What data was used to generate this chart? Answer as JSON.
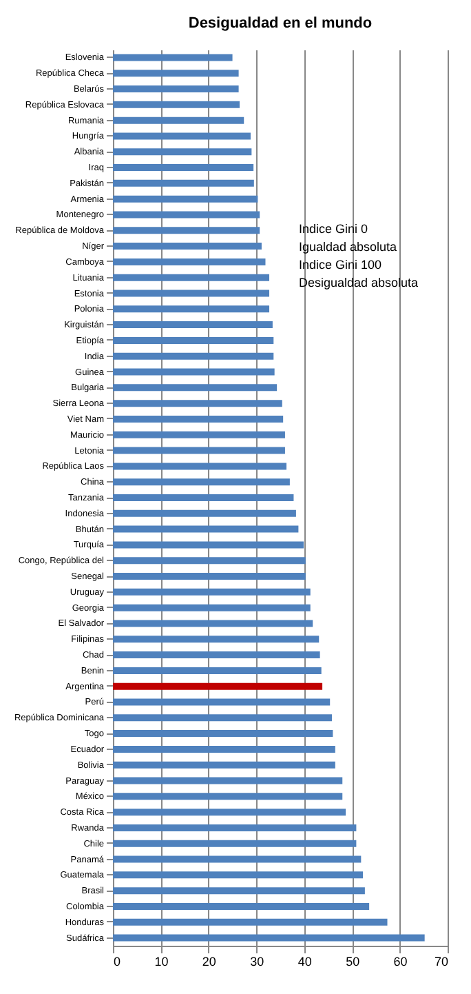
{
  "chart_data": {
    "type": "bar",
    "orientation": "horizontal",
    "title": "Desigualdad en el mundo",
    "categories": [
      "Eslovenia",
      "República Checa",
      "Belarús",
      "República Eslovaca",
      "Rumania",
      "Hungría",
      "Albania",
      "Iraq",
      "Pakistán",
      "Armenia",
      "Montenegro",
      "República de Moldova",
      "Níger",
      "Camboya",
      "Lituania",
      "Estonia",
      "Polonia",
      "Kirguistán",
      "Etiopía",
      "India",
      "Guinea",
      "Bulgaria",
      "Sierra Leona",
      "Viet Nam",
      "Mauricio",
      "Letonia",
      "República Laos",
      "China",
      "Tanzania",
      "Indonesia",
      "Bhután",
      "Turquía",
      "Congo, República del",
      "Senegal",
      "Uruguay",
      "Georgia",
      "El Salvador",
      "Filipinas",
      "Chad",
      "Benin",
      "Argentina",
      "Perú",
      "República Dominicana",
      "Togo",
      "Ecuador",
      "Bolivia",
      "Paraguay",
      "México",
      "Costa Rica",
      "Rwanda",
      "Chile",
      "Panamá",
      "Guatemala",
      "Brasil",
      "Colombia",
      "Honduras",
      "Sudáfrica"
    ],
    "values": [
      25.0,
      26.3,
      26.3,
      26.5,
      27.4,
      28.8,
      29.0,
      29.4,
      29.5,
      30.3,
      30.7,
      30.7,
      31.1,
      31.9,
      32.7,
      32.7,
      32.7,
      33.4,
      33.6,
      33.6,
      33.8,
      34.3,
      35.4,
      35.6,
      36.0,
      36.0,
      36.3,
      37.0,
      37.8,
      38.3,
      38.8,
      39.9,
      40.3,
      40.3,
      41.3,
      41.3,
      41.8,
      43.1,
      43.3,
      43.6,
      43.8,
      45.4,
      45.8,
      46.0,
      46.5,
      46.5,
      48.0,
      48.0,
      48.7,
      50.9,
      50.9,
      51.9,
      52.3,
      52.7,
      53.6,
      57.4,
      65.2
    ],
    "colors": [
      "#4f81bd",
      "#4f81bd",
      "#4f81bd",
      "#4f81bd",
      "#4f81bd",
      "#4f81bd",
      "#4f81bd",
      "#4f81bd",
      "#4f81bd",
      "#4f81bd",
      "#4f81bd",
      "#4f81bd",
      "#4f81bd",
      "#4f81bd",
      "#4f81bd",
      "#4f81bd",
      "#4f81bd",
      "#4f81bd",
      "#4f81bd",
      "#4f81bd",
      "#4f81bd",
      "#4f81bd",
      "#4f81bd",
      "#4f81bd",
      "#4f81bd",
      "#4f81bd",
      "#4f81bd",
      "#4f81bd",
      "#4f81bd",
      "#4f81bd",
      "#4f81bd",
      "#4f81bd",
      "#4f81bd",
      "#4f81bd",
      "#4f81bd",
      "#4f81bd",
      "#4f81bd",
      "#4f81bd",
      "#4f81bd",
      "#4f81bd",
      "#c00000",
      "#4f81bd",
      "#4f81bd",
      "#4f81bd",
      "#4f81bd",
      "#4f81bd",
      "#4f81bd",
      "#4f81bd",
      "#4f81bd",
      "#4f81bd",
      "#4f81bd",
      "#4f81bd",
      "#4f81bd",
      "#4f81bd",
      "#4f81bd",
      "#4f81bd",
      "#4f81bd"
    ],
    "xlim": [
      0,
      70
    ],
    "xticks": [
      0,
      10,
      20,
      30,
      40,
      50,
      60,
      70
    ],
    "grid": "x",
    "annotations": [
      "Indice Gini 0",
      "Igualdad absoluta",
      "Indice Gini 100",
      "Desigualdad absoluta"
    ]
  }
}
